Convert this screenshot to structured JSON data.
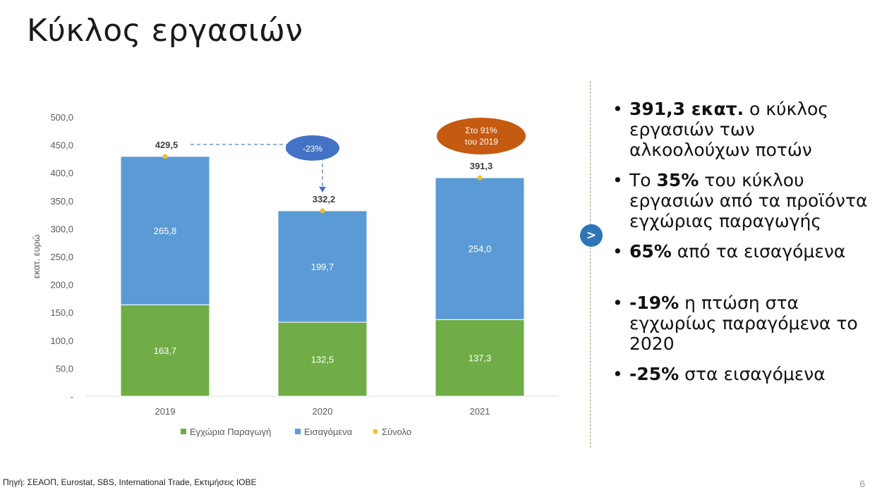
{
  "slide": {
    "title": "Κύκλος εργασιών",
    "arrow_glyph": ">",
    "source": "Πηγή: ΣΕΑΟΠ, Eurostat, SBS, International Trade, Εκτιμήσεις ΙΟΒΕ",
    "page_number": "6"
  },
  "bullets": [
    {
      "bold": "391,3 εκατ.",
      "text": " ο κύκλος εργασιών των αλκοολούχων ποτών"
    },
    {
      "pre": "Το ",
      "bold": "35%",
      "text": " του κύκλου εργασιών από τα προϊόντα εγχώριας παραγωγής"
    },
    {
      "bold": "65%",
      "text": " από τα εισαγόμενα"
    },
    {
      "bold": "-19%",
      "text": " η πτώση στα εγχωρίως παραγόμενα το 2020"
    },
    {
      "bold": "-25%",
      "text": " στα εισαγόμενα"
    }
  ],
  "colors": {
    "domestic": "#70ad47",
    "imports": "#5b9bd5",
    "total": "#f2c12e",
    "callout_blue": "#4472c4",
    "callout_orange": "#c55a11"
  },
  "chart_data": {
    "type": "bar",
    "stacked": true,
    "categories": [
      "2019",
      "2020",
      "2021"
    ],
    "series": [
      {
        "name": "Εγχώρια Παραγωγή",
        "values": [
          163.7,
          132.5,
          137.3
        ],
        "labels": [
          "163,7",
          "132,5",
          "137,3"
        ]
      },
      {
        "name": "Εισαγόμενα",
        "values": [
          265.8,
          199.7,
          254.0
        ],
        "labels": [
          "265,8",
          "199,7",
          "254,0"
        ]
      }
    ],
    "total": {
      "name": "Σύνολο",
      "values": [
        429.5,
        332.2,
        391.3
      ],
      "labels": [
        "429,5",
        "332,2",
        "391,3"
      ]
    },
    "ylabel": "εκατ. ευρώ",
    "ylim": [
      0,
      500
    ],
    "yticks": [
      "-",
      "50,0",
      "100,0",
      "150,0",
      "200,0",
      "250,0",
      "300,0",
      "350,0",
      "400,0",
      "450,0",
      "500,0"
    ],
    "legend_position": "bottom",
    "grid": false,
    "annotations": [
      {
        "text": "-23%",
        "from": "2019",
        "to": "2020",
        "style": "blue-ellipse-arrow"
      },
      {
        "text_lines": [
          "Στο 91%",
          "του 2019"
        ],
        "at": "2021",
        "style": "orange-ellipse"
      }
    ]
  }
}
